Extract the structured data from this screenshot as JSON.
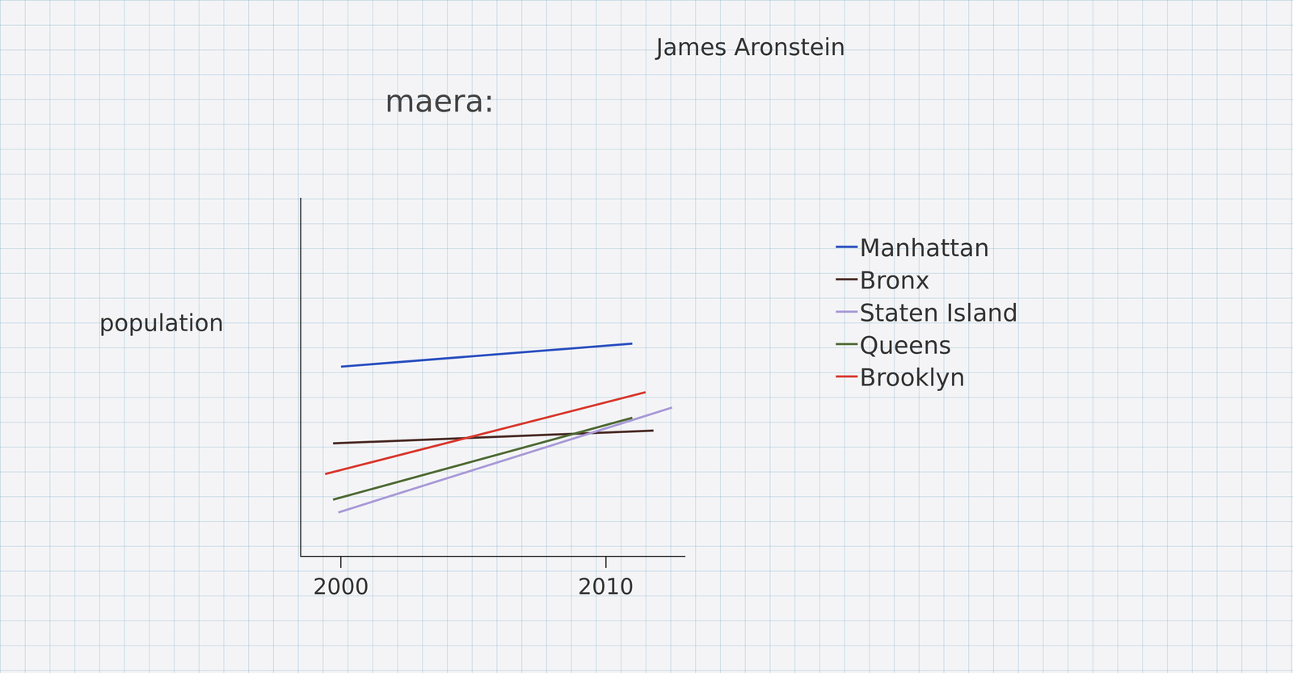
{
  "chart_data": {
    "type": "line",
    "title": "maera:",
    "annotations": [
      "James Aronstein"
    ],
    "y_label": "population",
    "xlim": [
      1998.5,
      2013
    ],
    "xticks": [
      2000,
      2010
    ],
    "ylim": [
      0,
      14
    ],
    "yticks": [],
    "tick_labels": "x",
    "grid": false,
    "legend": "right",
    "series": [
      {
        "name": "Manhattan",
        "color": "#2a4fc0",
        "x": [
          2000,
          2011
        ],
        "values": [
          7.4,
          8.3
        ]
      },
      {
        "name": "Bronx",
        "color": "#4a2a25",
        "x": [
          1999.7,
          2011.8
        ],
        "values": [
          4.4,
          4.9
        ]
      },
      {
        "name": "Staten Island",
        "color": "#a99ad8",
        "x": [
          1999.9,
          2012.5
        ],
        "values": [
          1.7,
          5.8
        ]
      },
      {
        "name": "Queens",
        "color": "#4f6b35",
        "x": [
          1999.7,
          2011
        ],
        "values": [
          2.2,
          5.4
        ]
      },
      {
        "name": "Brooklyn",
        "color": "#d8392e",
        "x": [
          1999.4,
          2011.5
        ],
        "values": [
          3.2,
          6.4
        ]
      }
    ]
  }
}
